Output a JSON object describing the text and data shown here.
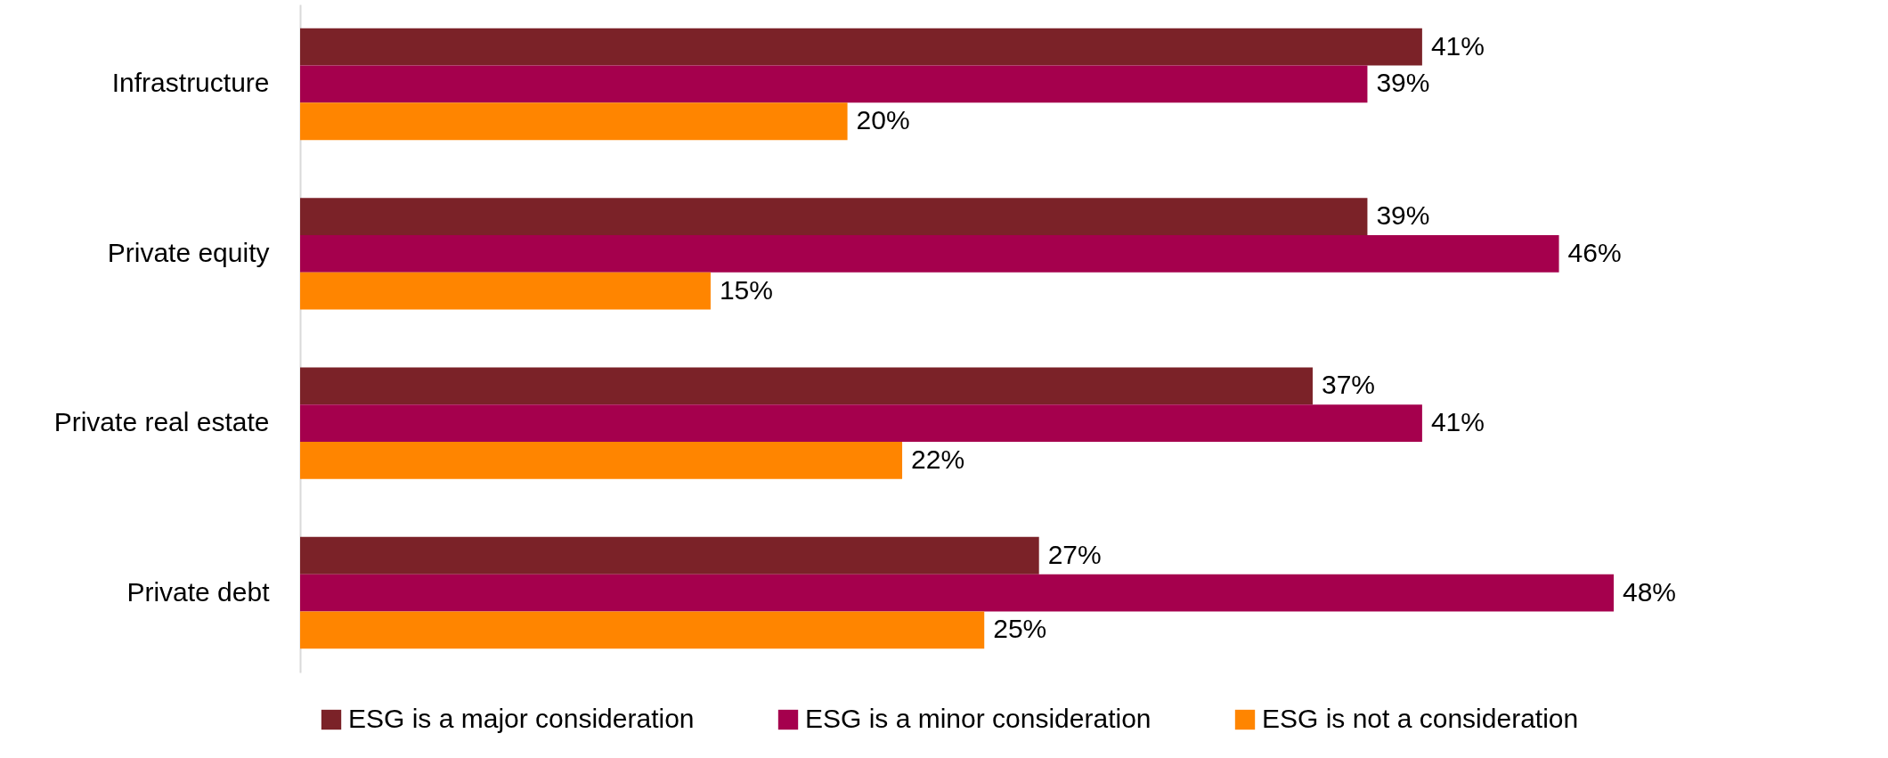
{
  "chart_data": {
    "type": "bar",
    "orientation": "horizontal",
    "categories": [
      "Infrastructure",
      "Private equity",
      "Private real estate",
      "Private debt"
    ],
    "series": [
      {
        "name": "ESG is a major consideration",
        "color": "#7b2228",
        "values": [
          41,
          39,
          37,
          27
        ],
        "value_labels": [
          "41%",
          "39%",
          "37%",
          "27%"
        ]
      },
      {
        "name": "ESG is a minor consideration",
        "color": "#a5004d",
        "values": [
          39,
          46,
          41,
          48
        ],
        "value_labels": [
          "39%",
          "46%",
          "41%",
          "48%"
        ]
      },
      {
        "name": "ESG is not a consideration",
        "color": "#ff8500",
        "values": [
          20,
          15,
          22,
          25
        ],
        "value_labels": [
          "20%",
          "15%",
          "22%",
          "25%"
        ]
      }
    ],
    "legend": "bottom",
    "grid": false
  }
}
